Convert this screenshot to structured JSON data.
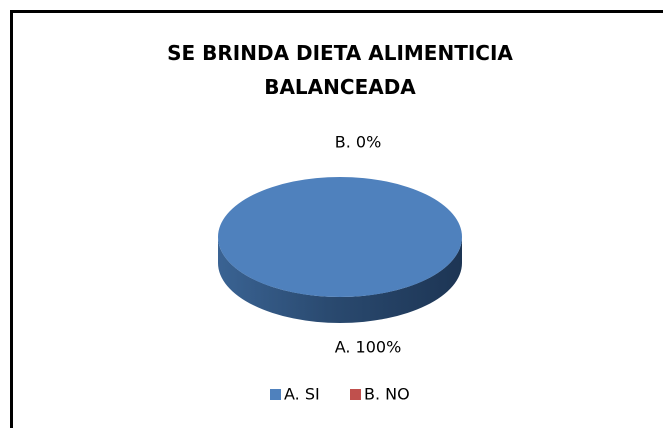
{
  "chart_data": {
    "type": "pie",
    "title": "SE BRINDA DIETA ALIMENTICIA BALANCEADA",
    "categories": [
      "A. SI",
      "B. NO"
    ],
    "values": [
      100,
      0
    ],
    "value_labels": [
      "A. 100%",
      "B. 0%"
    ],
    "colors": [
      "#4f81bd",
      "#c0504d"
    ],
    "legend": "bottom"
  }
}
